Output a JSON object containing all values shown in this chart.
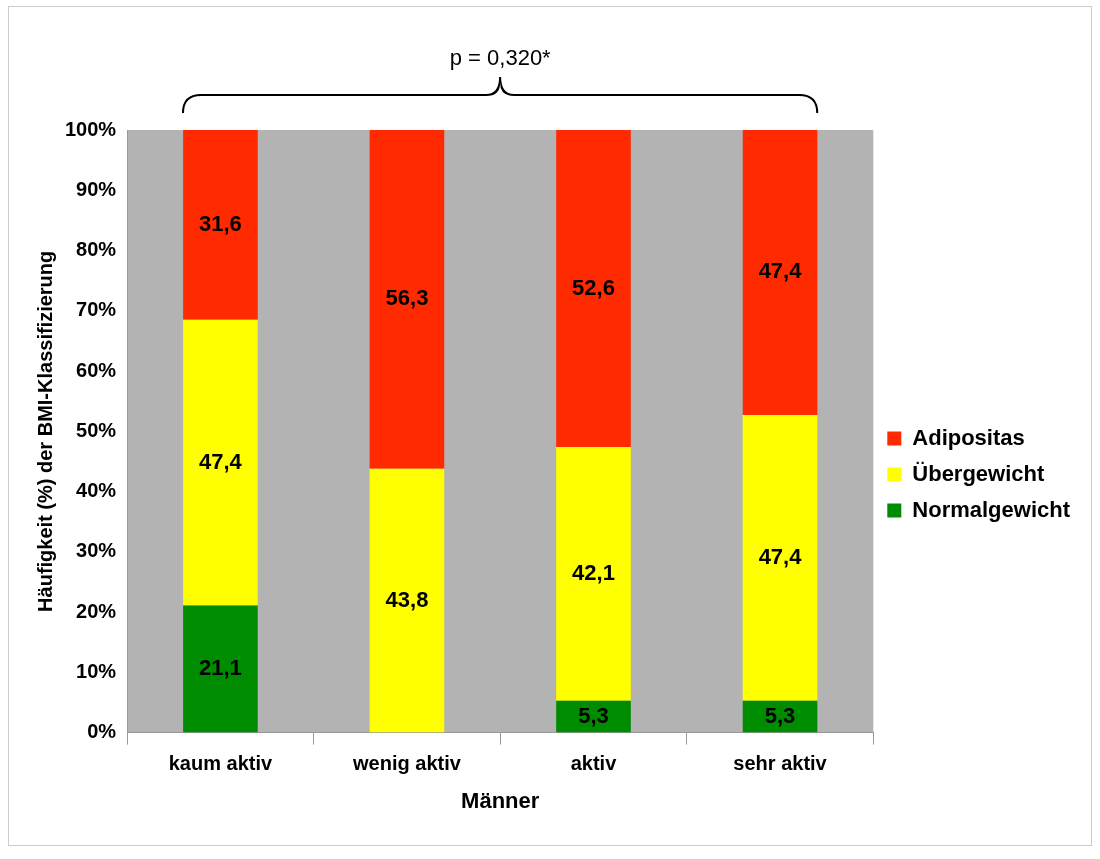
{
  "chart_data": {
    "type": "bar",
    "stacked": true,
    "xlabel": "Männer",
    "ylabel": "Häufigkeit (%) der BMI-Klassifizierung",
    "categories": [
      "kaum aktiv",
      "wenig aktiv",
      "aktiv",
      "sehr aktiv"
    ],
    "series": [
      {
        "name": "Normalgewicht",
        "color": "#008c00",
        "values": [
          21.1,
          0,
          5.3,
          5.3
        ],
        "value_labels": [
          "21,1",
          null,
          "5,3",
          "5,3"
        ]
      },
      {
        "name": "Übergewicht",
        "color": "#ffff00",
        "values": [
          47.4,
          43.8,
          42.1,
          47.4
        ],
        "value_labels": [
          "47,4",
          "43,8",
          "42,1",
          "47,4"
        ]
      },
      {
        "name": "Adipositas",
        "color": "#ff2a00",
        "values": [
          31.6,
          56.3,
          52.6,
          47.4
        ],
        "value_labels": [
          "31,6",
          "56,3",
          "52,6",
          "47,4"
        ]
      }
    ],
    "ylim": [
      0,
      100
    ],
    "yticks": [
      {
        "value": 0,
        "label": "0%"
      },
      {
        "value": 10,
        "label": "10%"
      },
      {
        "value": 20,
        "label": "20%"
      },
      {
        "value": 30,
        "label": "30%"
      },
      {
        "value": 40,
        "label": "40%"
      },
      {
        "value": 50,
        "label": "50%"
      },
      {
        "value": 60,
        "label": "60%"
      },
      {
        "value": 70,
        "label": "70%"
      },
      {
        "value": 80,
        "label": "80%"
      },
      {
        "value": 90,
        "label": "90%"
      },
      {
        "value": 100,
        "label": "100%"
      }
    ],
    "grid": false,
    "legend": "right",
    "annotations": [
      "p = 0,320*"
    ]
  }
}
